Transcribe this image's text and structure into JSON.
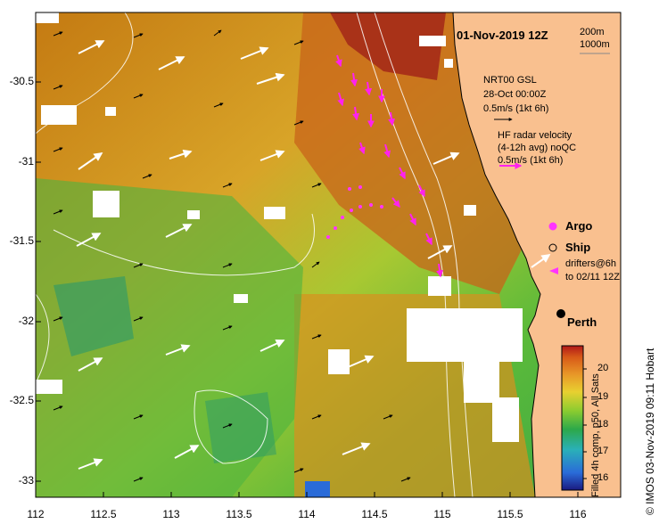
{
  "title": "01-Nov-2019 12Z",
  "isobaths": {
    "a": "200m",
    "b": "1000m"
  },
  "model_legend": {
    "line1": "NRT00 GSL",
    "line2": "28-Oct 00:00Z",
    "line3": "0.5m/s (1kt 6h)"
  },
  "radar_legend": {
    "line1": "HF radar velocity",
    "line2": "(4-12h avg) noQC",
    "line3": "0.5m/s (1kt 6h)"
  },
  "platforms": {
    "argo": "Argo",
    "ship": "Ship",
    "drifters1": "drifters@6h",
    "drifters2": "to 02/11 12Z"
  },
  "city": "Perth",
  "y_ticks": [
    "-30.5",
    "-31",
    "-31.5",
    "-32",
    "-32.5",
    "-33"
  ],
  "x_ticks": [
    "112",
    "112.5",
    "113",
    "113.5",
    "114",
    "114.5",
    "115",
    "115.5",
    "116"
  ],
  "colorbar": {
    "ticks": [
      "20",
      "19",
      "18",
      "17",
      "16"
    ],
    "label": "Filled 4h comp, p50, All Sats"
  },
  "credit": "© IMOS 03-Nov-2019 09:11 Hobart",
  "colors": {
    "land": "#f9c08f",
    "argo": "#ff33ff",
    "radar": "#ff22ee"
  }
}
